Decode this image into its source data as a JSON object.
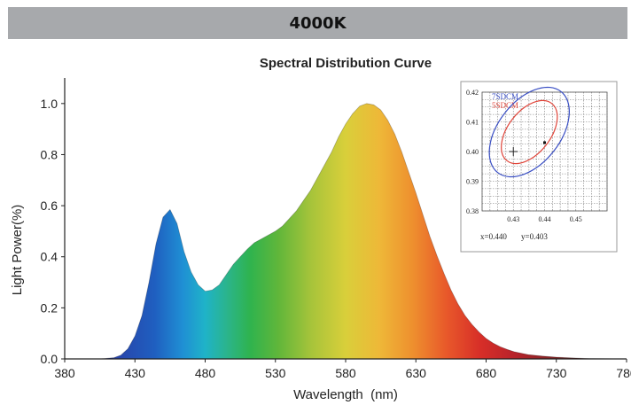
{
  "header": {
    "title": "4000K"
  },
  "chart_data": {
    "type": "area",
    "title": "Spectral Distribution Curve",
    "xlabel": "Wavelength  (nm)",
    "ylabel": "Light Power(%)",
    "xlim": [
      380,
      780
    ],
    "ylim": [
      0,
      1.1
    ],
    "x_ticks": [
      "380",
      "430",
      "480",
      "530",
      "580",
      "630",
      "680",
      "730",
      "780"
    ],
    "y_ticks": [
      "0.0",
      "0.2",
      "0.4",
      "0.6",
      "0.8",
      "1.0"
    ],
    "grid": false,
    "fill": "visible-spectrum gradient by wavelength",
    "x": [
      380,
      395,
      405,
      415,
      420,
      425,
      430,
      435,
      440,
      445,
      450,
      455,
      460,
      465,
      470,
      475,
      480,
      485,
      490,
      495,
      500,
      505,
      510,
      515,
      520,
      525,
      530,
      535,
      540,
      545,
      550,
      555,
      560,
      565,
      570,
      575,
      580,
      585,
      590,
      595,
      600,
      605,
      610,
      615,
      620,
      625,
      630,
      635,
      640,
      645,
      650,
      655,
      660,
      665,
      670,
      675,
      680,
      685,
      690,
      695,
      700,
      710,
      720,
      730,
      740,
      750,
      760,
      770,
      780
    ],
    "y": [
      0.0,
      0.0,
      0.0,
      0.005,
      0.015,
      0.04,
      0.09,
      0.17,
      0.3,
      0.45,
      0.555,
      0.585,
      0.53,
      0.42,
      0.34,
      0.29,
      0.265,
      0.27,
      0.29,
      0.33,
      0.37,
      0.4,
      0.43,
      0.455,
      0.47,
      0.485,
      0.5,
      0.52,
      0.55,
      0.58,
      0.62,
      0.66,
      0.71,
      0.76,
      0.81,
      0.87,
      0.92,
      0.96,
      0.99,
      1.0,
      0.995,
      0.975,
      0.935,
      0.88,
      0.81,
      0.73,
      0.65,
      0.565,
      0.48,
      0.405,
      0.335,
      0.27,
      0.215,
      0.17,
      0.135,
      0.105,
      0.08,
      0.062,
      0.048,
      0.037,
      0.028,
      0.017,
      0.011,
      0.007,
      0.004,
      0.002,
      0.001,
      0.0005,
      0.0
    ]
  },
  "inset": {
    "legend": [
      "7SDCM",
      "5SDCM"
    ],
    "legend_colors": [
      "#3a4fc4",
      "#e0453a"
    ],
    "x_ticks": [
      "0.43",
      "0.44",
      "0.45"
    ],
    "y_ticks": [
      "0.42",
      "0.41",
      "0.40",
      "0.39",
      "0.38"
    ],
    "xlim": [
      0.42,
      0.46
    ],
    "ylim": [
      0.38,
      0.42
    ],
    "center": {
      "x": 0.43,
      "y": 0.4
    },
    "point": {
      "x": 0.44,
      "y": 0.403
    },
    "readout_x": "x=0.440",
    "readout_y": "y=0.403"
  }
}
